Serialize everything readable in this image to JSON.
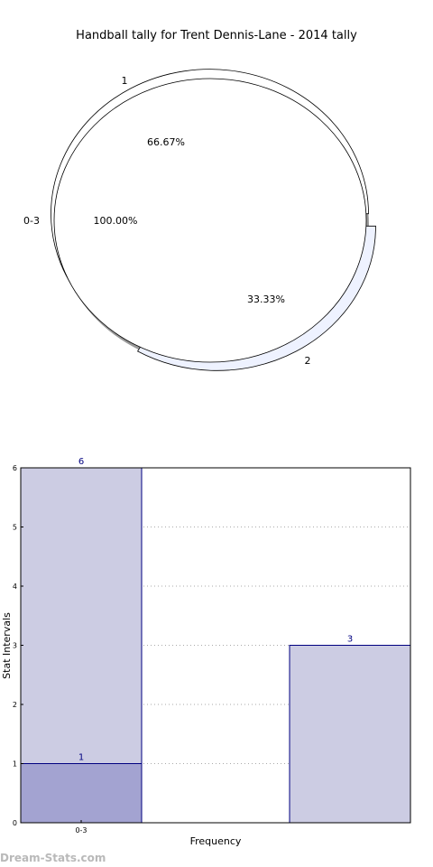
{
  "watermark": "Dream-Stats.com",
  "colors": {
    "pie_outer_fill": "#ffffff",
    "pie_inner_fill": "#ffffff",
    "pie_slice2_fill": "#eef2ff",
    "pie_shadow": "#999999",
    "bar_light": "#ccccE3",
    "bar_dark": "#a3a3d1",
    "bar_edge": "#000080",
    "bar_label": "#000080",
    "grid": "#aaaaaa",
    "text": "#000000"
  },
  "chart_data": [
    {
      "type": "pie",
      "title": "Handball tally for Trent Dennis-Lane - 2014 tally",
      "rings": [
        {
          "name": "outer",
          "slices": [
            {
              "label": "1",
              "value": 66.67,
              "pct_label": "66.67%"
            },
            {
              "label": "2",
              "value": 33.33,
              "pct_label": "33.33%"
            }
          ]
        },
        {
          "name": "inner",
          "slices": [
            {
              "label": "0-3",
              "value": 100,
              "pct_label": "100.00%"
            }
          ]
        }
      ]
    },
    {
      "type": "bar",
      "title": "",
      "xlabel": "Frequency",
      "ylabel": "Stat Intervals",
      "ylim": [
        0,
        6
      ],
      "yticks": [
        "0",
        "1",
        "2",
        "3",
        "4",
        "5",
        "6"
      ],
      "grid": true,
      "bars": [
        {
          "tick_label": "0-3",
          "value": 6,
          "value_label": "6",
          "shade": "light"
        },
        {
          "tick_label": "0-3",
          "value": 1,
          "value_label": "1",
          "shade": "dark"
        },
        {
          "tick_label": "",
          "value": 3,
          "value_label": "3",
          "shade": "light"
        }
      ]
    }
  ]
}
